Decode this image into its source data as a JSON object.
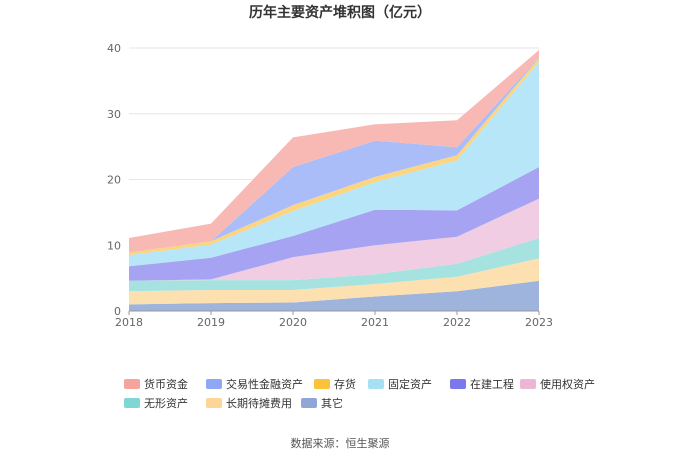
{
  "chart_data": {
    "type": "area",
    "stacked": true,
    "title": "历年主要资产堆积图（亿元）",
    "categories": [
      "2018",
      "2019",
      "2020",
      "2021",
      "2022",
      "2023"
    ],
    "y_ticks": [
      "0",
      "10",
      "20",
      "30",
      "40"
    ],
    "ylim": [
      0,
      40
    ],
    "grid": true,
    "legend_position": "bottom",
    "series": [
      {
        "name": "其它",
        "color": "#9fb4dc",
        "values": [
          1.0,
          1.2,
          1.3,
          2.2,
          3.0,
          4.6
        ]
      },
      {
        "name": "长期待摊费用",
        "color": "#fde0b0",
        "values": [
          2.0,
          2.0,
          1.9,
          1.9,
          2.2,
          3.4
        ]
      },
      {
        "name": "无形资产",
        "color": "#a6e3e0",
        "values": [
          1.6,
          1.5,
          1.5,
          1.5,
          2.0,
          3.1
        ]
      },
      {
        "name": "使用权资产",
        "color": "#f0cde3",
        "values": [
          0.0,
          0.1,
          3.5,
          4.4,
          4.1,
          6.0
        ]
      },
      {
        "name": "在建工程",
        "color": "#a5a3f2",
        "values": [
          2.2,
          3.3,
          3.2,
          5.4,
          4.0,
          4.8
        ]
      },
      {
        "name": "固定资产",
        "color": "#b6e6f7",
        "values": [
          1.7,
          2.0,
          3.8,
          4.2,
          7.6,
          16.0
        ]
      },
      {
        "name": "存货",
        "color": "#fcd583",
        "values": [
          0.4,
          0.5,
          0.9,
          0.8,
          0.8,
          0.6
        ]
      },
      {
        "name": "交易性金融资产",
        "color": "#aabdf8",
        "values": [
          0.0,
          0.0,
          5.8,
          5.5,
          1.2,
          0.1
        ]
      },
      {
        "name": "货币资金",
        "color": "#f8b9b5",
        "values": [
          2.2,
          2.7,
          4.5,
          2.5,
          4.1,
          1.1
        ]
      }
    ],
    "legend": [
      {
        "name": "货币资金",
        "color": "#f8a29c"
      },
      {
        "name": "交易性金融资产",
        "color": "#8fa7f5"
      },
      {
        "name": "存货",
        "color": "#fbc23a"
      },
      {
        "name": "固定资产",
        "color": "#a7e0f5"
      },
      {
        "name": "在建工程",
        "color": "#7b77ec"
      },
      {
        "name": "使用权资产",
        "color": "#edb6d6"
      },
      {
        "name": "无形资产",
        "color": "#7fd6d3"
      },
      {
        "name": "长期待摊费用",
        "color": "#fdd597"
      },
      {
        "name": "其它",
        "color": "#8fa6d6"
      }
    ],
    "source": "数据来源：恒生聚源"
  }
}
